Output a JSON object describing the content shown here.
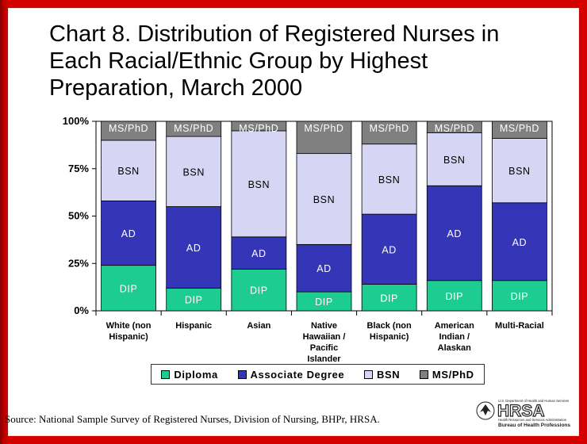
{
  "title": "Chart 8. Distribution of Registered Nurses in Each Racial/Ethnic Group by Highest Preparation, March 2000",
  "source": "Source: National Sample Survey of Registered Nurses, Division of Nursing, BHPr, HRSA.",
  "logo": {
    "name": "HRSA",
    "top_text": "U.S. Department of Health and Human Services",
    "sub_text": "Health Resources and Services Administration",
    "bureau": "Bureau of Health Professions"
  },
  "colors": {
    "DIP": "#1dcc91",
    "AD": "#3535b8",
    "BSN": "#d6d6f4",
    "MSPHD": "#808080",
    "background_frame": "#cc0000"
  },
  "chart_data": {
    "type": "bar",
    "stacked": true,
    "percent": true,
    "ylim": [
      0,
      100
    ],
    "yticks": [
      "0%",
      "25%",
      "50%",
      "75%",
      "100%"
    ],
    "categories": [
      [
        "White (non",
        "Hispanic)"
      ],
      [
        "Hispanic"
      ],
      [
        "Asian"
      ],
      [
        "Native",
        "Hawaiian /",
        "Pacific",
        "Islander"
      ],
      [
        "Black (non",
        "Hispanic)"
      ],
      [
        "American",
        "Indian /",
        "Alaskan"
      ],
      [
        "Multi-Racial"
      ]
    ],
    "series": [
      {
        "name": "Diploma",
        "label": "DIP",
        "color_key": "DIP",
        "values": [
          24,
          12,
          22,
          10,
          14,
          16,
          16
        ]
      },
      {
        "name": "Associate Degree",
        "label": "AD",
        "color_key": "AD",
        "values": [
          34,
          43,
          17,
          25,
          37,
          50,
          41
        ]
      },
      {
        "name": "BSN",
        "label": "BSN",
        "color_key": "BSN",
        "values": [
          32,
          37,
          56,
          48,
          37,
          28,
          34
        ]
      },
      {
        "name": "MS/PhD",
        "label": "MS/PhD",
        "color_key": "MSPHD",
        "values": [
          10,
          8,
          5,
          17,
          12,
          6,
          9
        ]
      }
    ],
    "legend_position": "bottom"
  }
}
